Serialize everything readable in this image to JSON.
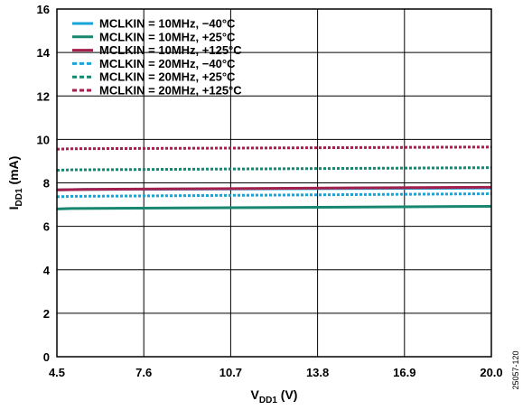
{
  "chart_data": {
    "type": "line",
    "xlabel": {
      "main": "V",
      "sub": "DD1",
      "unit": " (V)"
    },
    "ylabel": {
      "main": "I",
      "sub": "DD1",
      "unit": " (mA)"
    },
    "xlim": [
      4.5,
      20.0
    ],
    "ylim": [
      0,
      16
    ],
    "x_ticks": [
      "4.5",
      "7.6",
      "10.7",
      "13.8",
      "16.9",
      "20.0"
    ],
    "y_ticks": [
      "0",
      "2",
      "4",
      "6",
      "8",
      "10",
      "12",
      "14",
      "16"
    ],
    "grid": true,
    "legend_position": "top-left",
    "figure_id": "25057-120",
    "series": [
      {
        "name": "MCLKIN = 10MHz, −40°C",
        "color": "#1aa3d9",
        "dash": "solid",
        "x": [
          4.5,
          5.5,
          20.0
        ],
        "y": [
          7.68,
          7.7,
          7.76
        ]
      },
      {
        "name": "MCLKIN = 10MHz, +25°C",
        "color": "#17876f",
        "dash": "solid",
        "x": [
          4.5,
          5.0,
          20.0
        ],
        "y": [
          6.8,
          6.82,
          6.92
        ]
      },
      {
        "name": "MCLKIN = 10MHz, +125°C",
        "color": "#a31f4c",
        "dash": "solid",
        "x": [
          4.5,
          5.5,
          20.0
        ],
        "y": [
          7.68,
          7.7,
          7.8
        ]
      },
      {
        "name": "MCLKIN = 20MHz, −40°C",
        "color": "#1aa3d9",
        "dash": "dashed",
        "x": [
          4.5,
          5.0,
          20.0
        ],
        "y": [
          7.36,
          7.38,
          7.5
        ]
      },
      {
        "name": "MCLKIN = 20MHz, +25°C",
        "color": "#17876f",
        "dash": "dashed",
        "x": [
          4.5,
          5.0,
          20.0
        ],
        "y": [
          8.58,
          8.6,
          8.7
        ]
      },
      {
        "name": "MCLKIN = 20MHz, +125°C",
        "color": "#a31f4c",
        "dash": "dashed",
        "x": [
          4.5,
          5.0,
          20.0
        ],
        "y": [
          9.55,
          9.57,
          9.65
        ]
      }
    ]
  }
}
